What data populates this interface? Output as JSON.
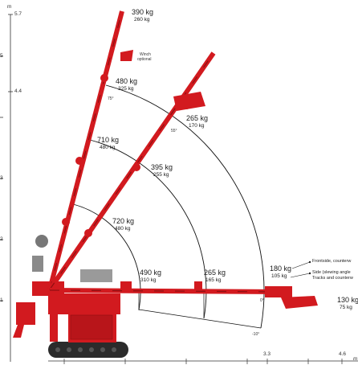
{
  "axes": {
    "y_unit": "m",
    "x_unit": "m",
    "y_ticks": [
      "5.7",
      "4.4"
    ],
    "y_edge_ticks": [
      "5",
      "3",
      "2",
      "1"
    ],
    "x_ticks": [
      "3.3",
      "4.6"
    ]
  },
  "angles": [
    "75°",
    "55°",
    "0°",
    "-10°"
  ],
  "winch_note": [
    "Winch",
    "optional"
  ],
  "loads": {
    "tip_75": {
      "main": "390 kg",
      "sub": "260 kg"
    },
    "r1_75": {
      "main": "480 kg",
      "sub": "325 kg"
    },
    "r2_75": {
      "main": "710 kg",
      "sub": "480 kg"
    },
    "r3_75": {
      "main": "720 kg",
      "sub": "480 kg"
    },
    "r1_55": {
      "main": "265 kg",
      "sub": "170 kg"
    },
    "r2_55": {
      "main": "395 kg",
      "sub": "255 kg"
    },
    "near_0": {
      "main": "490 kg",
      "sub": "310 kg"
    },
    "mid_0": {
      "main": "265 kg",
      "sub": "165 kg"
    },
    "far_0": {
      "main": "180 kg",
      "sub": "105 kg"
    },
    "tip_0": {
      "main": "130 kg",
      "sub": "75 kg"
    }
  },
  "legend": {
    "front": "Frontside, counterw",
    "side1": "Side (slewing angle",
    "side2": "Tracks and counterw"
  },
  "colors": {
    "boom": "#d21a1f",
    "boom_dark": "#8e0f12",
    "arc": "#111111",
    "track": "#2b2b2b"
  }
}
